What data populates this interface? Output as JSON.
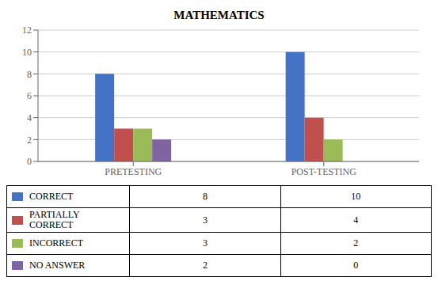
{
  "chart_data": {
    "type": "bar",
    "title": "MATHEMATICS",
    "categories": [
      "PRETESTING",
      "POST-TESTING"
    ],
    "series": [
      {
        "name": "CORRECT",
        "color": "#4472C4",
        "values": [
          8,
          10
        ]
      },
      {
        "name": "PARTIALLY\nCORRECT",
        "color": "#C0504D",
        "values": [
          3,
          4
        ]
      },
      {
        "name": "INCORRECT",
        "color": "#9BBB59",
        "values": [
          3,
          2
        ]
      },
      {
        "name": "NO ANSWER",
        "color": "#8064A2",
        "values": [
          2,
          0
        ]
      }
    ],
    "ylim": [
      0,
      12
    ],
    "yticks": [
      0,
      2,
      4,
      6,
      8,
      10,
      12
    ],
    "grid": true
  }
}
